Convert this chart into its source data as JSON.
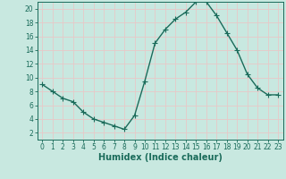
{
  "x": [
    0,
    1,
    2,
    3,
    4,
    5,
    6,
    7,
    8,
    9,
    10,
    11,
    12,
    13,
    14,
    15,
    16,
    17,
    18,
    19,
    20,
    21,
    22,
    23
  ],
  "y": [
    9,
    8,
    7,
    6.5,
    5,
    4,
    3.5,
    3,
    2.5,
    4.5,
    9.5,
    15,
    17,
    18.5,
    19.5,
    21,
    21,
    19,
    16.5,
    14,
    10.5,
    8.5,
    7.5,
    7.5
  ],
  "line_color": "#1a6b5a",
  "marker": "+",
  "marker_size": 4,
  "bg_color": "#c8e8e0",
  "grid_color": "#e8c8c8",
  "xlabel": "Humidex (Indice chaleur)",
  "xlim": [
    -0.5,
    23.5
  ],
  "ylim": [
    1,
    21
  ],
  "yticks": [
    2,
    4,
    6,
    8,
    10,
    12,
    14,
    16,
    18,
    20
  ],
  "xticks": [
    0,
    1,
    2,
    3,
    4,
    5,
    6,
    7,
    8,
    9,
    10,
    11,
    12,
    13,
    14,
    15,
    16,
    17,
    18,
    19,
    20,
    21,
    22,
    23
  ],
  "tick_fontsize": 5.5,
  "xlabel_fontsize": 7,
  "line_width": 1.0,
  "marker_edge_width": 0.8
}
